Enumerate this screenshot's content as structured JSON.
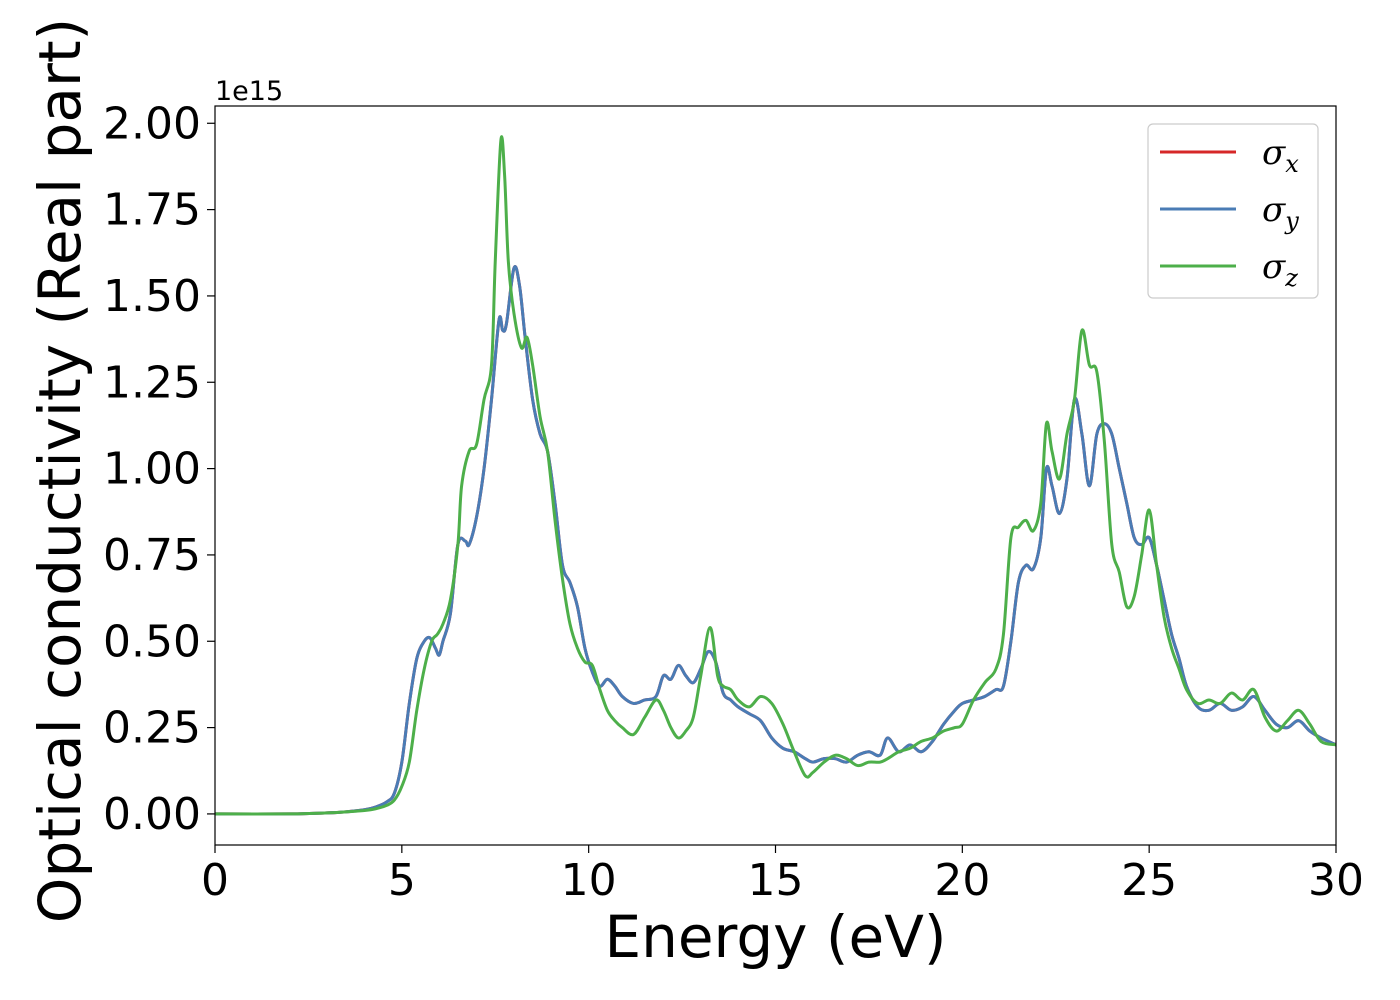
{
  "chart_data": {
    "type": "line",
    "title": "",
    "xlabel": "Energy (eV)",
    "ylabel": "Optical conductivity (Real part)",
    "offset_label": "1e15",
    "xlim": [
      0,
      30
    ],
    "ylim": [
      -0.09,
      2.05
    ],
    "x_ticks": [
      0,
      5,
      10,
      15,
      20,
      25,
      30
    ],
    "x_tick_labels": [
      "0",
      "5",
      "10",
      "15",
      "20",
      "25",
      "30"
    ],
    "y_ticks": [
      0.0,
      0.25,
      0.5,
      0.75,
      1.0,
      1.25,
      1.5,
      1.75,
      2.0
    ],
    "y_tick_labels": [
      "0.00",
      "0.25",
      "0.50",
      "0.75",
      "1.00",
      "1.25",
      "1.50",
      "1.75",
      "2.00"
    ],
    "grid": false,
    "legend_position": "top-right",
    "series": [
      {
        "name": "σ_x",
        "label_main": "σ",
        "label_sub": "x",
        "color": "#d62728",
        "x": [
          0,
          2,
          3,
          3.5,
          4,
          4.3,
          4.6,
          4.8,
          5.0,
          5.2,
          5.4,
          5.6,
          5.75,
          5.9,
          6.0,
          6.1,
          6.3,
          6.5,
          6.7,
          6.8,
          7.0,
          7.2,
          7.4,
          7.6,
          7.7,
          7.8,
          8.0,
          8.15,
          8.3,
          8.5,
          8.7,
          8.9,
          9.1,
          9.3,
          9.5,
          9.7,
          9.9,
          10.1,
          10.3,
          10.5,
          10.7,
          10.9,
          11.2,
          11.5,
          11.8,
          12.0,
          12.2,
          12.4,
          12.6,
          12.8,
          13.0,
          13.2,
          13.4,
          13.6,
          13.8,
          14.0,
          14.3,
          14.6,
          14.9,
          15.2,
          15.5,
          15.8,
          16.0,
          16.3,
          16.6,
          16.9,
          17.2,
          17.5,
          17.8,
          18.0,
          18.3,
          18.6,
          18.9,
          19.2,
          19.5,
          19.8,
          20.0,
          20.3,
          20.6,
          20.9,
          21.1,
          21.3,
          21.5,
          21.7,
          21.9,
          22.1,
          22.25,
          22.4,
          22.6,
          22.8,
          23.0,
          23.2,
          23.4,
          23.6,
          23.8,
          24.0,
          24.2,
          24.4,
          24.6,
          24.8,
          25.0,
          25.2,
          25.4,
          25.6,
          25.8,
          26.0,
          26.3,
          26.6,
          26.9,
          27.2,
          27.5,
          27.8,
          28.1,
          28.4,
          28.7,
          29.0,
          29.3,
          29.6,
          30.0
        ],
        "values": [
          0.0,
          0.0,
          0.003,
          0.006,
          0.012,
          0.02,
          0.035,
          0.06,
          0.15,
          0.32,
          0.45,
          0.5,
          0.51,
          0.48,
          0.46,
          0.5,
          0.58,
          0.78,
          0.79,
          0.78,
          0.86,
          1.0,
          1.2,
          1.43,
          1.4,
          1.42,
          1.58,
          1.53,
          1.38,
          1.2,
          1.1,
          1.05,
          0.9,
          0.72,
          0.67,
          0.6,
          0.48,
          0.41,
          0.37,
          0.39,
          0.37,
          0.34,
          0.32,
          0.33,
          0.34,
          0.4,
          0.39,
          0.43,
          0.4,
          0.38,
          0.42,
          0.47,
          0.44,
          0.35,
          0.33,
          0.31,
          0.29,
          0.27,
          0.22,
          0.19,
          0.18,
          0.16,
          0.15,
          0.16,
          0.16,
          0.15,
          0.17,
          0.18,
          0.17,
          0.22,
          0.18,
          0.2,
          0.18,
          0.21,
          0.26,
          0.3,
          0.32,
          0.33,
          0.34,
          0.36,
          0.37,
          0.5,
          0.67,
          0.72,
          0.71,
          0.8,
          1.0,
          0.95,
          0.87,
          0.97,
          1.2,
          1.1,
          0.95,
          1.1,
          1.13,
          1.1,
          1.0,
          0.9,
          0.8,
          0.78,
          0.8,
          0.72,
          0.62,
          0.52,
          0.45,
          0.37,
          0.31,
          0.3,
          0.32,
          0.3,
          0.31,
          0.34,
          0.3,
          0.26,
          0.25,
          0.27,
          0.24,
          0.22,
          0.2
        ]
      },
      {
        "name": "σ_y",
        "label_main": "σ",
        "label_sub": "y",
        "color": "#4a7cb5",
        "x": [
          0,
          2,
          3,
          3.5,
          4,
          4.3,
          4.6,
          4.8,
          5.0,
          5.2,
          5.4,
          5.6,
          5.75,
          5.9,
          6.0,
          6.1,
          6.3,
          6.5,
          6.7,
          6.8,
          7.0,
          7.2,
          7.4,
          7.6,
          7.7,
          7.8,
          8.0,
          8.15,
          8.3,
          8.5,
          8.7,
          8.9,
          9.1,
          9.3,
          9.5,
          9.7,
          9.9,
          10.1,
          10.3,
          10.5,
          10.7,
          10.9,
          11.2,
          11.5,
          11.8,
          12.0,
          12.2,
          12.4,
          12.6,
          12.8,
          13.0,
          13.2,
          13.4,
          13.6,
          13.8,
          14.0,
          14.3,
          14.6,
          14.9,
          15.2,
          15.5,
          15.8,
          16.0,
          16.3,
          16.6,
          16.9,
          17.2,
          17.5,
          17.8,
          18.0,
          18.3,
          18.6,
          18.9,
          19.2,
          19.5,
          19.8,
          20.0,
          20.3,
          20.6,
          20.9,
          21.1,
          21.3,
          21.5,
          21.7,
          21.9,
          22.1,
          22.25,
          22.4,
          22.6,
          22.8,
          23.0,
          23.2,
          23.4,
          23.6,
          23.8,
          24.0,
          24.2,
          24.4,
          24.6,
          24.8,
          25.0,
          25.2,
          25.4,
          25.6,
          25.8,
          26.0,
          26.3,
          26.6,
          26.9,
          27.2,
          27.5,
          27.8,
          28.1,
          28.4,
          28.7,
          29.0,
          29.3,
          29.6,
          30.0
        ],
        "values": [
          0.0,
          0.0,
          0.003,
          0.006,
          0.012,
          0.02,
          0.035,
          0.06,
          0.15,
          0.32,
          0.45,
          0.5,
          0.51,
          0.48,
          0.46,
          0.5,
          0.58,
          0.78,
          0.79,
          0.78,
          0.86,
          1.0,
          1.2,
          1.43,
          1.4,
          1.42,
          1.58,
          1.53,
          1.38,
          1.2,
          1.1,
          1.05,
          0.9,
          0.72,
          0.67,
          0.6,
          0.48,
          0.41,
          0.37,
          0.39,
          0.37,
          0.34,
          0.32,
          0.33,
          0.34,
          0.4,
          0.39,
          0.43,
          0.4,
          0.38,
          0.42,
          0.47,
          0.44,
          0.35,
          0.33,
          0.31,
          0.29,
          0.27,
          0.22,
          0.19,
          0.18,
          0.16,
          0.15,
          0.16,
          0.16,
          0.15,
          0.17,
          0.18,
          0.17,
          0.22,
          0.18,
          0.2,
          0.18,
          0.21,
          0.26,
          0.3,
          0.32,
          0.33,
          0.34,
          0.36,
          0.37,
          0.5,
          0.67,
          0.72,
          0.71,
          0.8,
          1.0,
          0.95,
          0.87,
          0.97,
          1.2,
          1.1,
          0.95,
          1.1,
          1.13,
          1.1,
          1.0,
          0.9,
          0.8,
          0.78,
          0.8,
          0.72,
          0.62,
          0.52,
          0.45,
          0.37,
          0.31,
          0.3,
          0.32,
          0.3,
          0.31,
          0.34,
          0.3,
          0.26,
          0.25,
          0.27,
          0.24,
          0.22,
          0.2
        ]
      },
      {
        "name": "σ_z",
        "label_main": "σ",
        "label_sub": "z",
        "color": "#4daf4a",
        "x": [
          0,
          2,
          3,
          3.5,
          4,
          4.3,
          4.6,
          4.8,
          5.0,
          5.2,
          5.4,
          5.6,
          5.8,
          5.95,
          6.1,
          6.3,
          6.5,
          6.6,
          6.8,
          7.0,
          7.2,
          7.4,
          7.5,
          7.65,
          7.75,
          7.85,
          8.0,
          8.2,
          8.35,
          8.5,
          8.7,
          8.9,
          9.1,
          9.3,
          9.5,
          9.7,
          9.9,
          10.1,
          10.3,
          10.5,
          10.7,
          10.9,
          11.2,
          11.5,
          11.8,
          12.0,
          12.2,
          12.4,
          12.6,
          12.8,
          13.0,
          13.25,
          13.45,
          13.6,
          13.8,
          14.0,
          14.3,
          14.6,
          14.9,
          15.2,
          15.5,
          15.8,
          16.0,
          16.3,
          16.6,
          16.9,
          17.2,
          17.5,
          17.8,
          18.0,
          18.3,
          18.6,
          18.9,
          19.2,
          19.5,
          19.8,
          20.0,
          20.3,
          20.6,
          20.9,
          21.1,
          21.3,
          21.5,
          21.7,
          21.9,
          22.1,
          22.25,
          22.4,
          22.6,
          22.8,
          23.0,
          23.2,
          23.4,
          23.6,
          23.8,
          24.0,
          24.2,
          24.4,
          24.6,
          24.8,
          25.0,
          25.2,
          25.4,
          25.6,
          25.8,
          26.0,
          26.3,
          26.6,
          26.9,
          27.2,
          27.5,
          27.8,
          28.1,
          28.4,
          28.7,
          29.0,
          29.3,
          29.6,
          30.0
        ],
        "values": [
          0.0,
          0.0,
          0.003,
          0.006,
          0.01,
          0.015,
          0.025,
          0.04,
          0.08,
          0.15,
          0.3,
          0.42,
          0.5,
          0.52,
          0.55,
          0.62,
          0.78,
          0.95,
          1.05,
          1.07,
          1.2,
          1.3,
          1.6,
          1.95,
          1.85,
          1.6,
          1.45,
          1.35,
          1.38,
          1.3,
          1.15,
          1.05,
          0.85,
          0.68,
          0.55,
          0.48,
          0.44,
          0.43,
          0.36,
          0.3,
          0.27,
          0.25,
          0.23,
          0.28,
          0.33,
          0.3,
          0.25,
          0.22,
          0.24,
          0.28,
          0.4,
          0.54,
          0.4,
          0.37,
          0.36,
          0.33,
          0.31,
          0.34,
          0.32,
          0.26,
          0.18,
          0.11,
          0.12,
          0.15,
          0.17,
          0.16,
          0.14,
          0.15,
          0.15,
          0.16,
          0.18,
          0.19,
          0.21,
          0.22,
          0.24,
          0.25,
          0.26,
          0.33,
          0.38,
          0.42,
          0.52,
          0.8,
          0.83,
          0.85,
          0.82,
          0.9,
          1.13,
          1.05,
          0.97,
          1.1,
          1.2,
          1.4,
          1.3,
          1.28,
          1.08,
          0.78,
          0.7,
          0.6,
          0.63,
          0.75,
          0.88,
          0.72,
          0.57,
          0.48,
          0.42,
          0.36,
          0.32,
          0.33,
          0.32,
          0.35,
          0.33,
          0.36,
          0.28,
          0.24,
          0.27,
          0.3,
          0.26,
          0.21,
          0.2
        ]
      }
    ]
  }
}
